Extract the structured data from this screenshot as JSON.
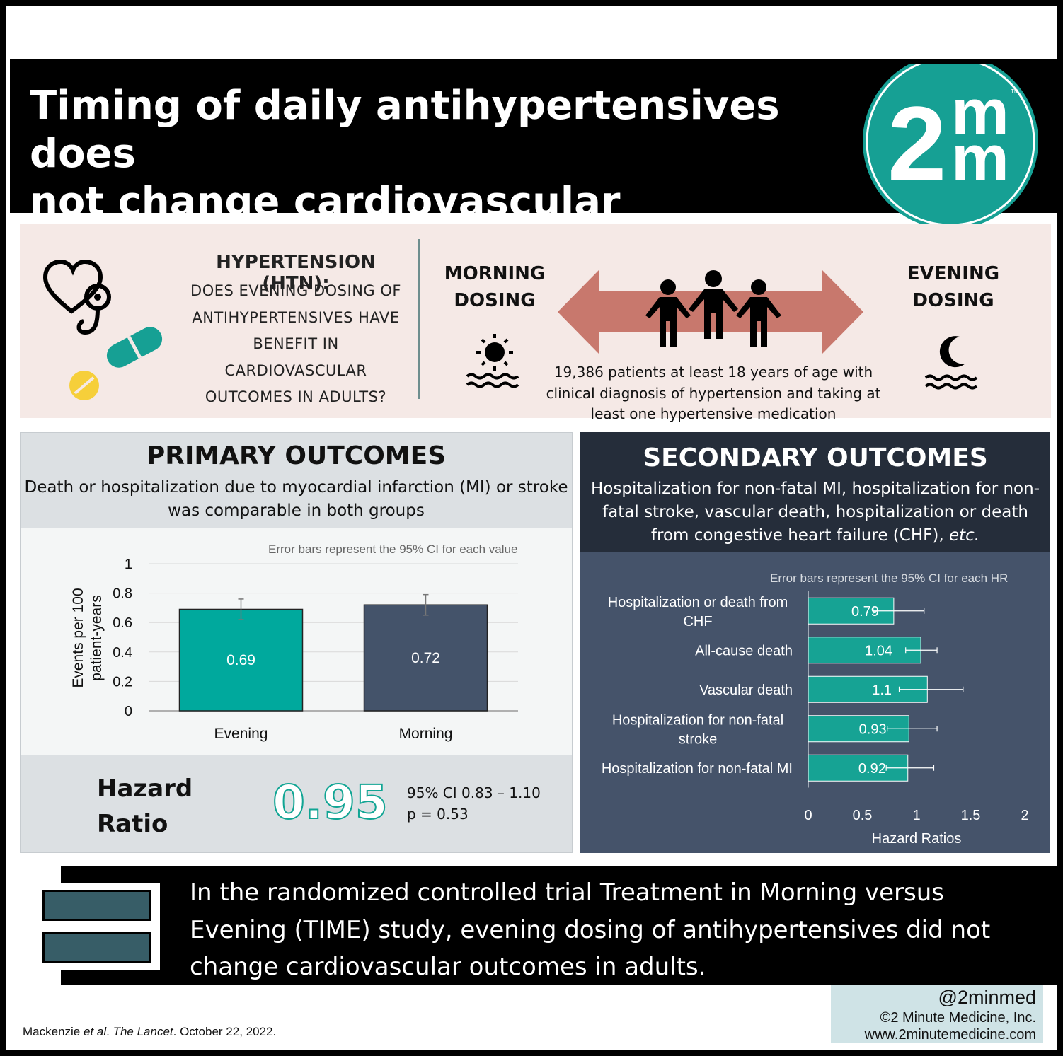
{
  "header": {
    "title_line1": "Timing of daily antihypertensives does",
    "title_line2": "not change cardiovascular outcomes",
    "logo_text_left": "2",
    "logo_text_right_top": "m",
    "logo_text_right_bottom": "m",
    "logo_tm": "TM",
    "logo_color": "#16a094"
  },
  "intro": {
    "heading": "HYPERTENSION (HTN):",
    "question_lines": [
      "DOES EVENING DOSING OF",
      "ANTIHYPERTENSIVES HAVE",
      "BENEFIT IN",
      "CARDIOVASCULAR",
      "OUTCOMES IN ADULTS?"
    ],
    "morning_lines": [
      "MORNING",
      "DOSING"
    ],
    "evening_lines": [
      "EVENING",
      "DOSING"
    ],
    "patients_lines": [
      "19,386 patients at least 18 years of age with",
      "clinical diagnosis of hypertension and taking at",
      "least one hypertensive medication"
    ],
    "icons": [
      "heart-stethoscope-icon",
      "capsule-icon",
      "tablet-icon",
      "sun-icon",
      "moon-icon",
      "people-icon",
      "double-arrow-icon"
    ],
    "background": "#f5e9e6",
    "arrow_color": "#c8786d"
  },
  "primary": {
    "title": "PRIMARY OUTCOMES",
    "subtitle_lines": [
      "Death or hospitalization due to myocardial infarction (MI) or stroke",
      "was comparable in both groups"
    ],
    "note": "Error bars represent the 95% CI for each value",
    "hazard_label_lines": [
      "Hazard",
      "Ratio"
    ],
    "hazard_value": "0.95",
    "ci_text": "95% CI 0.83 – 1.10",
    "p_text": "p = 0.53"
  },
  "secondary": {
    "title": "SECONDARY OUTCOMES",
    "subtitle_lines": [
      "Hospitalization for non-fatal MI, hospitalization for non-",
      "fatal stroke, vascular death, hospitalization or death",
      "from congestive heart failure (CHF), "
    ],
    "subtitle_em": "etc.",
    "note": "Error bars represent the 95% CI for each HR"
  },
  "chart_data": [
    {
      "type": "bar",
      "categories": [
        "Evening",
        "Morning"
      ],
      "values": [
        0.69,
        0.72
      ],
      "error_low": [
        0.62,
        0.65
      ],
      "error_high": [
        0.76,
        0.79
      ],
      "data_labels": [
        "0.69",
        "0.72"
      ],
      "ylabel_lines": [
        "Events per 100",
        "patient-years"
      ],
      "yticks": [
        "0",
        "0.2",
        "0.4",
        "0.6",
        "0.8",
        "1"
      ],
      "ylim": [
        0,
        1
      ],
      "grid": true,
      "colors": [
        "#00a99d",
        "#44536a"
      ]
    },
    {
      "type": "bar",
      "orientation": "horizontal",
      "categories": [
        [
          "Hospitalization or death from",
          "CHF"
        ],
        [
          "All-cause death"
        ],
        [
          "Vascular death"
        ],
        [
          "Hospitalization for non-fatal",
          "stroke"
        ],
        [
          "Hospitalization for non-fatal MI"
        ]
      ],
      "values": [
        0.79,
        1.04,
        1.1,
        0.93,
        0.92
      ],
      "data_labels": [
        "0.79",
        "1.04",
        "1.1",
        "0.93",
        "0.92"
      ],
      "error_low": [
        0.6,
        0.9,
        0.84,
        0.73,
        0.72
      ],
      "error_high": [
        1.07,
        1.19,
        1.43,
        1.19,
        1.16
      ],
      "xlabel": "Hazard Ratios",
      "xticks": [
        "0",
        "0.5",
        "1",
        "1.5",
        "2"
      ],
      "xlim": [
        0,
        2
      ],
      "bar_color": "#16a394"
    }
  ],
  "conclusion": {
    "lines": [
      "In the randomized controlled trial Treatment in Morning versus",
      "Evening (TIME) study, evening dosing of antihypertensives did not",
      "change cardiovascular outcomes in adults."
    ]
  },
  "citation": {
    "author": "Mackenzie ",
    "etal": "et al",
    "dot": ". ",
    "journal": "The Lancet",
    "date": ". October 22, 2022."
  },
  "credits": {
    "handle": "@2minmed",
    "copyright": "©2 Minute Medicine, Inc.",
    "url": "www.2minutemedicine.com"
  }
}
